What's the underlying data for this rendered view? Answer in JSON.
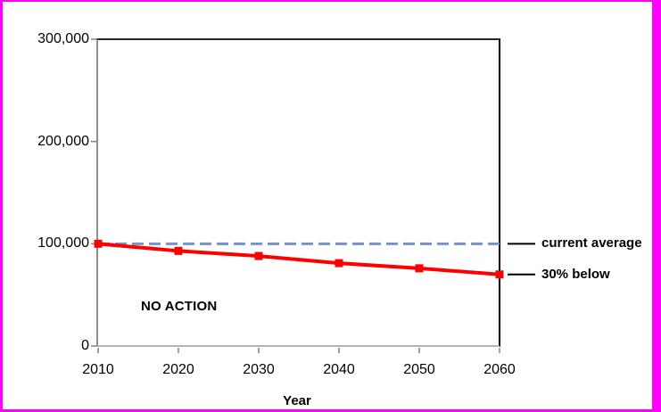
{
  "window": {
    "frame_border_color": "#ff00ff",
    "background_color": "#ffffff"
  },
  "chart_data": {
    "type": "line",
    "title": "",
    "xlabel": "Year",
    "ylabel": "",
    "x": [
      2010,
      2020,
      2030,
      2040,
      2050,
      2060
    ],
    "xlim": [
      2010,
      2060
    ],
    "ylim": [
      0,
      300000
    ],
    "grid": false,
    "y_ticks": [
      {
        "value": 300000,
        "label": "300,000"
      },
      {
        "value": 200000,
        "label": "200,000"
      },
      {
        "value": 100000,
        "label": "100,000"
      },
      {
        "value": 0,
        "label": "0"
      }
    ],
    "series": [
      {
        "name": "current average",
        "kind": "reference-line",
        "style": "dashed",
        "color": "#7793c7",
        "value": 100000
      },
      {
        "name": "30% below",
        "kind": "data-line",
        "style": "solid",
        "marker": "square",
        "color": "#ff0000",
        "values": [
          100000,
          93000,
          88000,
          81000,
          76000,
          70000
        ]
      }
    ],
    "annotations": [
      {
        "text": "NO ACTION",
        "x": 2016,
        "y": 38000
      }
    ],
    "legend_position": "right-of-plot-with-leader-lines",
    "leader_line_color": "#000000",
    "axis_color": "#808080",
    "plot_border_color": "#000000"
  }
}
